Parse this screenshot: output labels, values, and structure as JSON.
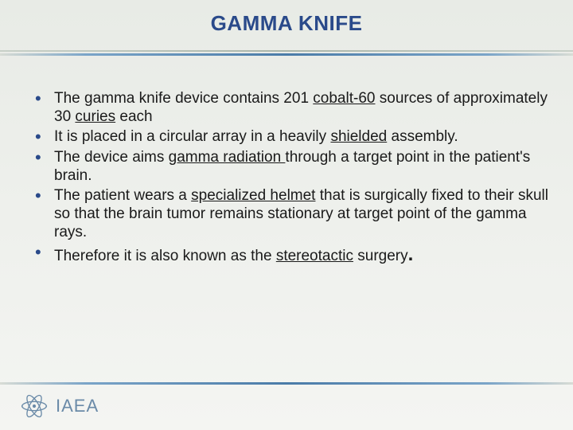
{
  "title": "GAMMA KNIFE",
  "colors": {
    "title_color": "#2a4a8a",
    "bullet_color": "#2a4a8a",
    "text_color": "#1a1a1a",
    "accent_blue": "#4a7ba8",
    "logo_color": "#6a8aa8",
    "bg_top": "#e8ebe6",
    "bg_bottom": "#f4f5f2"
  },
  "typography": {
    "title_fontsize": 26,
    "title_weight": "bold",
    "body_fontsize": 19,
    "logo_fontsize": 22
  },
  "bullets": [
    {
      "runs": [
        {
          "t": "The gamma knife device contains 201 "
        },
        {
          "t": "cobalt-60",
          "u": true
        },
        {
          "t": " sources of approximately 30 "
        },
        {
          "t": "curies",
          "u": true
        },
        {
          "t": "  each"
        }
      ]
    },
    {
      "runs": [
        {
          "t": "It is placed in a circular array in a heavily "
        },
        {
          "t": "shielded",
          "u": true
        },
        {
          "t": " assembly."
        }
      ]
    },
    {
      "runs": [
        {
          "t": "The device aims "
        },
        {
          "t": "gamma radiation ",
          "u": true
        },
        {
          "t": "through a target point in the patient's brain."
        }
      ]
    },
    {
      "runs": [
        {
          "t": "The patient wears a "
        },
        {
          "t": "specialized helmet",
          "u": true
        },
        {
          "t": " that is surgically fixed to their skull so that the brain tumor remains stationary at target point of the gamma rays."
        }
      ]
    },
    {
      "runs": [
        {
          "t": "Therefore it is also known as the "
        },
        {
          "t": "stereotactic",
          "u": true
        },
        {
          "t": " surgery"
        },
        {
          "t": ".",
          "big": true
        }
      ]
    }
  ],
  "footer": {
    "org": "IAEA",
    "logo_name": "iaea-logo"
  }
}
